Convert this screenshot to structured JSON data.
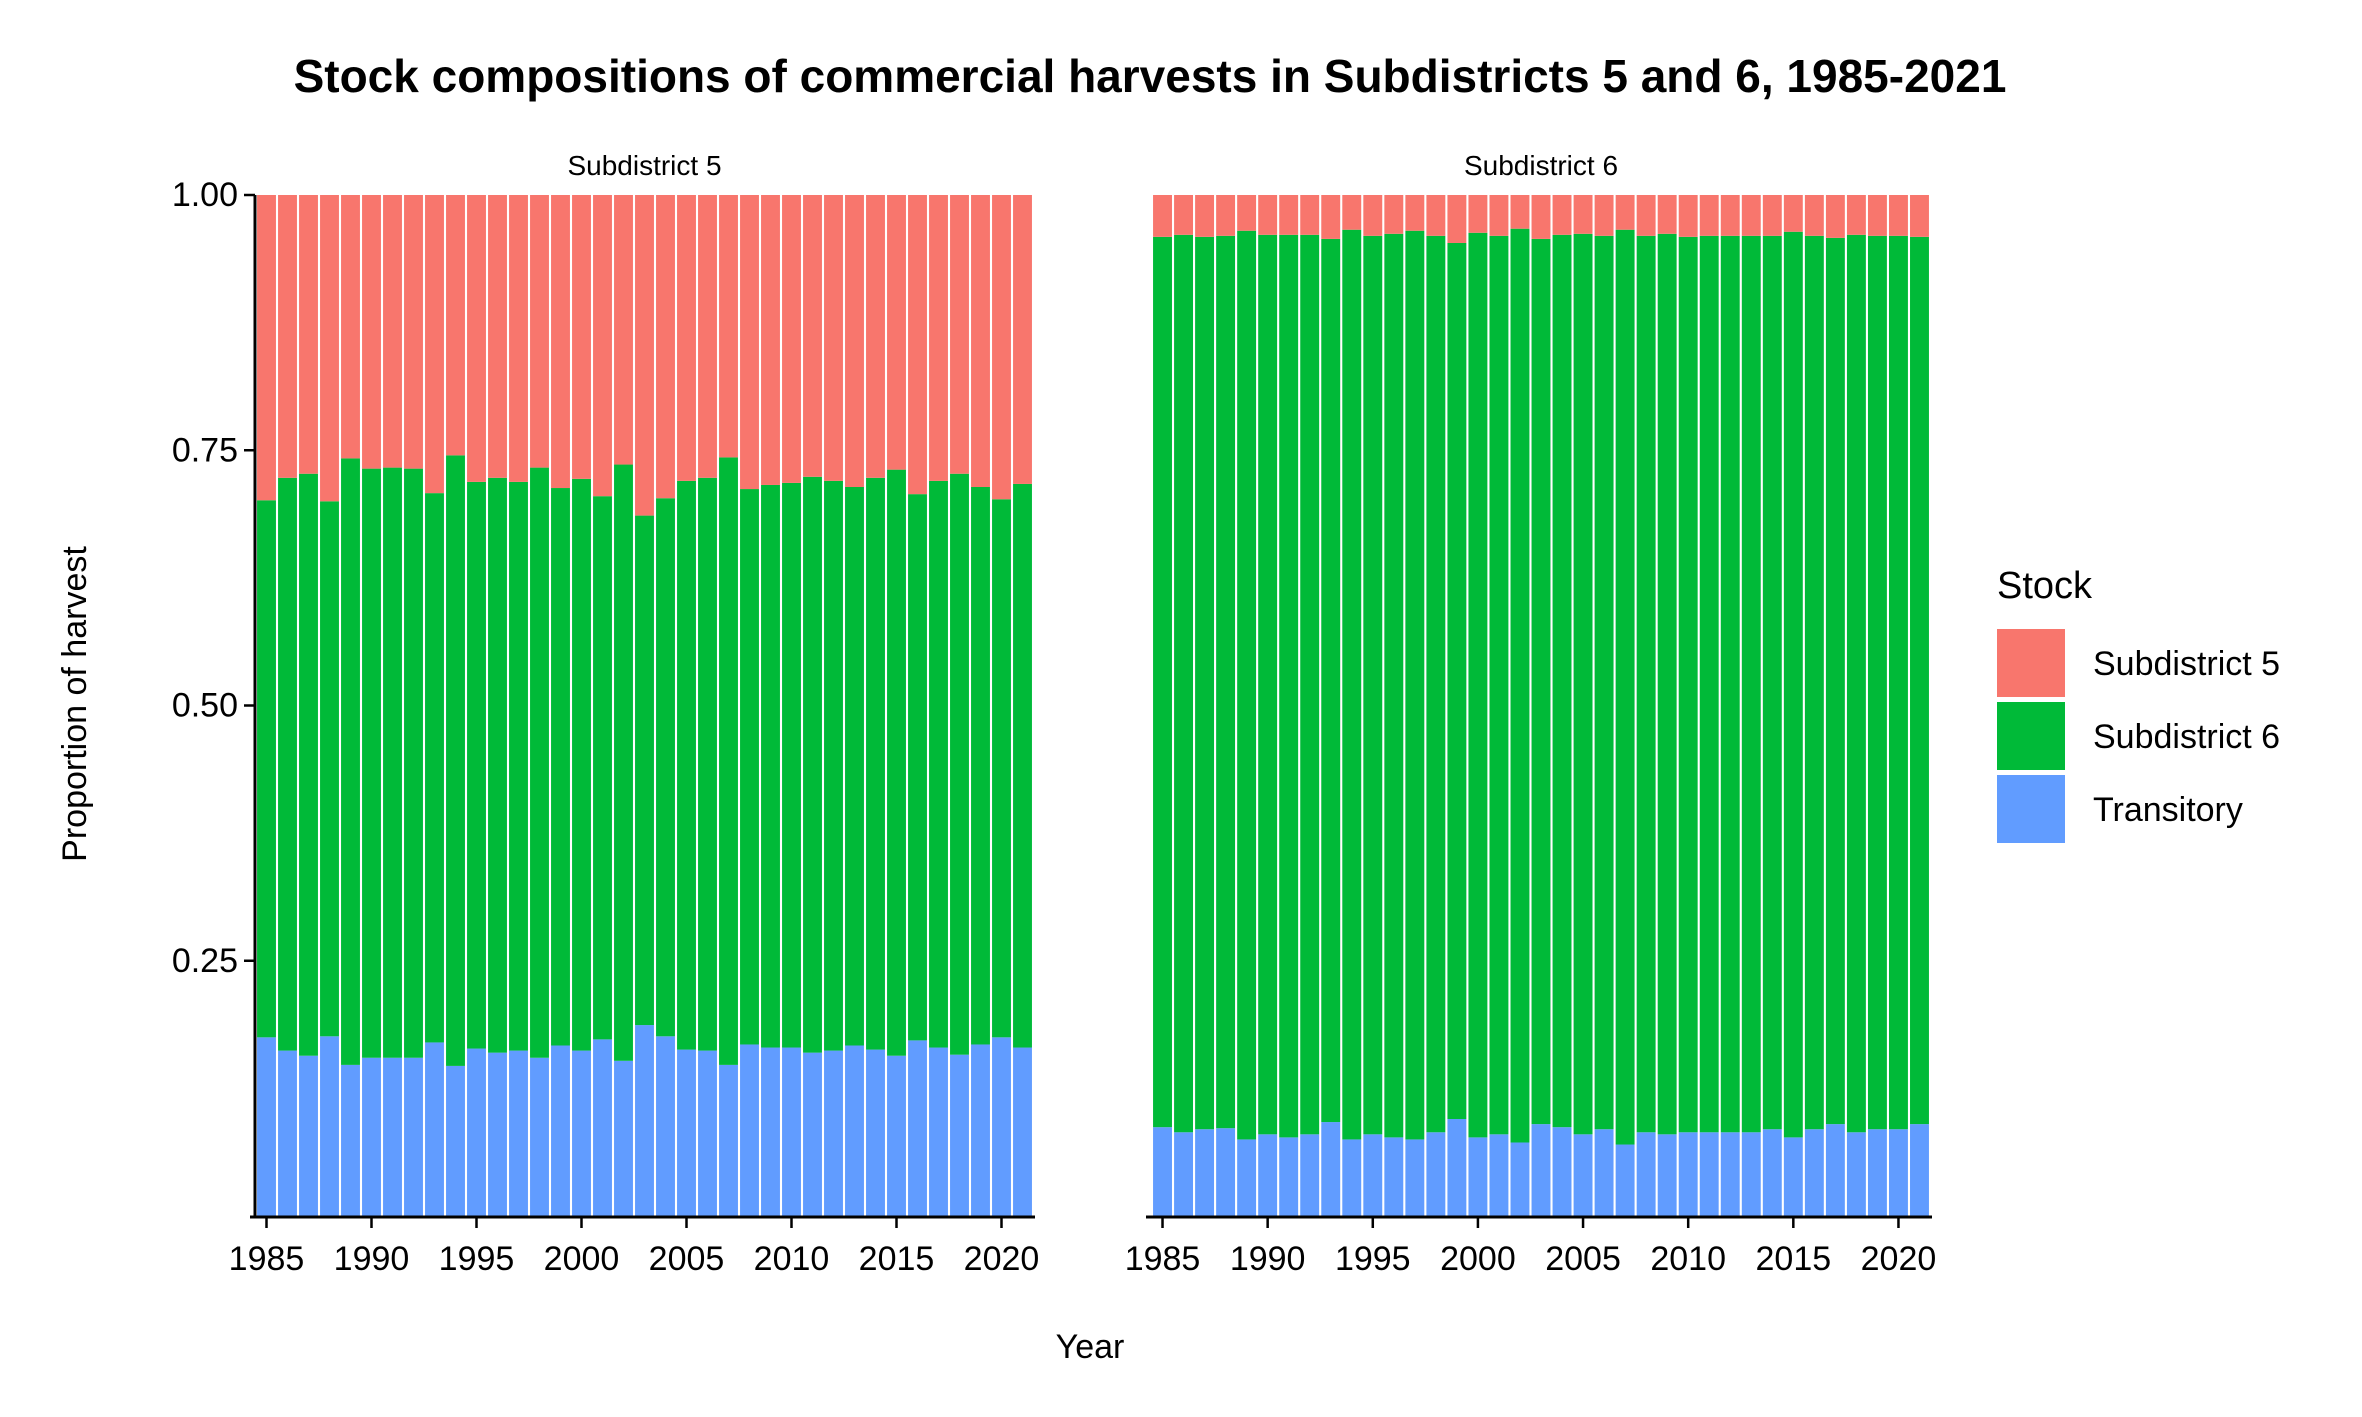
{
  "chart_data": {
    "type": "bar",
    "stacked": true,
    "title": "Stock compositions of commercial harvests in Subdistricts 5 and 6, 1985-2021",
    "xlabel": "Year",
    "ylabel": "Proportion of harvest",
    "ylim": [
      0,
      1
    ],
    "y_ticks": [
      "0.25",
      "0.50",
      "0.75",
      "1.00"
    ],
    "x_ticks": [
      "1985",
      "1990",
      "1995",
      "2000",
      "2005",
      "2010",
      "2015",
      "2020"
    ],
    "legend_title": "Stock",
    "legend_position": "right",
    "colors": {
      "Subdistrict 5": "#F8766D",
      "Subdistrict 6": "#00BA38",
      "Transitory": "#619CFF"
    },
    "legend_entries": [
      "Subdistrict 5",
      "Subdistrict 6",
      "Transitory"
    ],
    "panels": [
      {
        "label": "Subdistrict 5",
        "years": [
          1985,
          1986,
          1987,
          1988,
          1989,
          1990,
          1991,
          1992,
          1993,
          1994,
          1995,
          1996,
          1997,
          1998,
          1999,
          2000,
          2001,
          2002,
          2003,
          2004,
          2005,
          2006,
          2007,
          2008,
          2009,
          2010,
          2011,
          2012,
          2013,
          2014,
          2015,
          2016,
          2017,
          2018,
          2019,
          2020,
          2021
        ],
        "series": [
          {
            "name": "Transitory",
            "values": [
              0.175,
              0.162,
              0.157,
              0.176,
              0.148,
              0.155,
              0.155,
              0.155,
              0.17,
              0.147,
              0.164,
              0.16,
              0.162,
              0.155,
              0.167,
              0.162,
              0.173,
              0.152,
              0.187,
              0.176,
              0.163,
              0.162,
              0.148,
              0.168,
              0.165,
              0.165,
              0.16,
              0.162,
              0.167,
              0.163,
              0.157,
              0.172,
              0.165,
              0.158,
              0.168,
              0.175,
              0.165
            ]
          },
          {
            "name": "Subdistrict 6",
            "values": [
              0.526,
              0.561,
              0.57,
              0.524,
              0.594,
              0.577,
              0.578,
              0.577,
              0.538,
              0.598,
              0.555,
              0.563,
              0.557,
              0.578,
              0.546,
              0.56,
              0.532,
              0.584,
              0.499,
              0.527,
              0.557,
              0.561,
              0.595,
              0.544,
              0.551,
              0.553,
              0.564,
              0.558,
              0.547,
              0.56,
              0.574,
              0.535,
              0.555,
              0.569,
              0.546,
              0.527,
              0.552
            ]
          },
          {
            "name": "Subdistrict 5",
            "values": [
              0.299,
              0.277,
              0.273,
              0.3,
              0.258,
              0.268,
              0.267,
              0.268,
              0.292,
              0.255,
              0.281,
              0.277,
              0.281,
              0.267,
              0.287,
              0.278,
              0.295,
              0.264,
              0.314,
              0.297,
              0.28,
              0.277,
              0.257,
              0.288,
              0.284,
              0.282,
              0.276,
              0.28,
              0.286,
              0.277,
              0.269,
              0.293,
              0.28,
              0.273,
              0.286,
              0.298,
              0.283
            ]
          }
        ]
      },
      {
        "label": "Subdistrict 6",
        "years": [
          1985,
          1986,
          1987,
          1988,
          1989,
          1990,
          1991,
          1992,
          1993,
          1994,
          1995,
          1996,
          1997,
          1998,
          1999,
          2000,
          2001,
          2002,
          2003,
          2004,
          2005,
          2006,
          2007,
          2008,
          2009,
          2010,
          2011,
          2012,
          2013,
          2014,
          2015,
          2016,
          2017,
          2018,
          2019,
          2020,
          2021
        ],
        "series": [
          {
            "name": "Transitory",
            "values": [
              0.087,
              0.082,
              0.085,
              0.086,
              0.075,
              0.08,
              0.077,
              0.08,
              0.092,
              0.075,
              0.08,
              0.077,
              0.075,
              0.082,
              0.095,
              0.077,
              0.08,
              0.072,
              0.09,
              0.087,
              0.08,
              0.085,
              0.07,
              0.082,
              0.08,
              0.082,
              0.082,
              0.082,
              0.082,
              0.085,
              0.077,
              0.085,
              0.09,
              0.082,
              0.085,
              0.085,
              0.09
            ]
          },
          {
            "name": "Subdistrict 6",
            "values": [
              0.872,
              0.879,
              0.874,
              0.874,
              0.89,
              0.881,
              0.884,
              0.881,
              0.865,
              0.891,
              0.88,
              0.885,
              0.89,
              0.878,
              0.858,
              0.886,
              0.88,
              0.895,
              0.867,
              0.874,
              0.882,
              0.875,
              0.896,
              0.878,
              0.882,
              0.877,
              0.878,
              0.878,
              0.878,
              0.875,
              0.887,
              0.875,
              0.868,
              0.879,
              0.875,
              0.875,
              0.869
            ]
          },
          {
            "name": "Subdistrict 5",
            "values": [
              0.041,
              0.039,
              0.041,
              0.04,
              0.035,
              0.039,
              0.039,
              0.039,
              0.043,
              0.034,
              0.04,
              0.038,
              0.035,
              0.04,
              0.047,
              0.037,
              0.04,
              0.033,
              0.043,
              0.039,
              0.038,
              0.04,
              0.034,
              0.04,
              0.038,
              0.041,
              0.04,
              0.04,
              0.04,
              0.04,
              0.036,
              0.04,
              0.042,
              0.039,
              0.04,
              0.04,
              0.041
            ]
          }
        ]
      }
    ]
  }
}
